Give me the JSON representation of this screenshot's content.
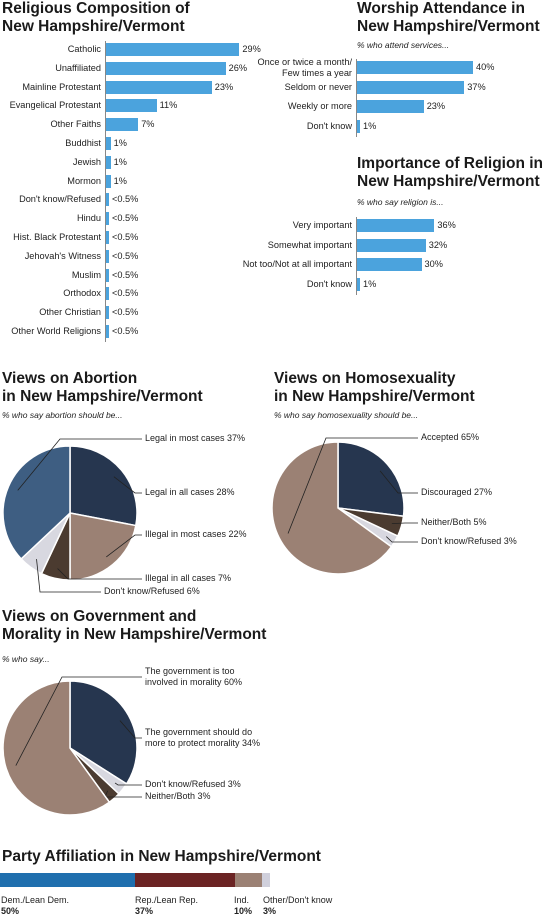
{
  "colors": {
    "bar": "#4ba3dd",
    "dark_navy": "#26364f",
    "steel_blue": "#3e5e82",
    "tan": "#9b8174",
    "dark_brown": "#4b3b30",
    "light_gray": "#d8d8e0",
    "dem_blue": "#1f6fae",
    "rep_red": "#6b2424",
    "ind_tan": "#9b8174",
    "other_gray": "#d0d0dc"
  },
  "religious": {
    "title_line1": "Religious Composition of",
    "title_line2": "New Hampshire/Vermont",
    "chart_data": {
      "type": "bar",
      "categories": [
        "Catholic",
        "Unaffiliated",
        "Mainline Protestant",
        "Evangelical Protestant",
        "Other Faiths",
        "Buddhist",
        "Jewish",
        "Mormon",
        "Don't know/Refused",
        "Hindu",
        "Hist. Black Protestant",
        "Jehovah's Witness",
        "Muslim",
        "Orthodox",
        "Other Christian",
        "Other World Religions"
      ],
      "values": [
        29,
        26,
        23,
        11,
        7,
        1,
        1,
        1,
        0.5,
        0.5,
        0.5,
        0.5,
        0.5,
        0.5,
        0.5,
        0.5
      ],
      "labels": [
        "29%",
        "26%",
        "23%",
        "11%",
        "7%",
        "1%",
        "1%",
        "1%",
        "<0.5%",
        "<0.5%",
        "<0.5%",
        "<0.5%",
        "<0.5%",
        "<0.5%",
        "<0.5%",
        "<0.5%"
      ]
    }
  },
  "worship": {
    "title_line1": "Worship Attendance in",
    "title_line2": "New Hampshire/Vermont",
    "subtitle": "% who attend services...",
    "chart_data": {
      "type": "bar",
      "categories": [
        "Once or twice a month/\nFew times a year",
        "Seldom or never",
        "Weekly or more",
        "Don't know"
      ],
      "values": [
        40,
        37,
        23,
        1
      ],
      "labels": [
        "40%",
        "37%",
        "23%",
        "1%"
      ]
    }
  },
  "importance": {
    "title_line1": "Importance of Religion in",
    "title_line2": "New Hampshire/Vermont",
    "subtitle": "% who say religion is...",
    "chart_data": {
      "type": "bar",
      "categories": [
        "Very important",
        "Somewhat important",
        "Not too/Not at all important",
        "Don't know"
      ],
      "values": [
        36,
        32,
        30,
        1
      ],
      "labels": [
        "36%",
        "32%",
        "30%",
        "1%"
      ]
    }
  },
  "abortion": {
    "title_line1": "Views on Abortion",
    "title_line2": "in New Hampshire/Vermont",
    "subtitle": "% who say abortion should be...",
    "chart_data": {
      "type": "pie",
      "categories": [
        "Legal in all cases",
        "Illegal in most cases",
        "Illegal in all cases",
        "Don't know/Refused",
        "Legal in most cases"
      ],
      "values": [
        28,
        22,
        7,
        6,
        37
      ],
      "labels": [
        "Legal in all cases 28%",
        "Illegal in most cases 22%",
        "Illegal in all cases 7%",
        "Don't know/Refused 6%",
        "Legal in most cases 37%"
      ]
    }
  },
  "homosexuality": {
    "title_line1": "Views on Homosexuality",
    "title_line2": "in New Hampshire/Vermont",
    "subtitle": "% who say homosexuality should be...",
    "chart_data": {
      "type": "pie",
      "categories": [
        "Discouraged",
        "Neither/Both",
        "Don't know/Refused",
        "Accepted"
      ],
      "values": [
        27,
        5,
        3,
        65
      ],
      "labels": [
        "Discouraged 27%",
        "Neither/Both 5%",
        "Don't know/Refused 3%",
        "Accepted 65%"
      ]
    }
  },
  "government": {
    "title_line1": "Views on Government and",
    "title_line2": "Morality in New Hampshire/Vermont",
    "subtitle": "% who say...",
    "chart_data": {
      "type": "pie",
      "categories": [
        "The government should do more to protect morality",
        "Don't know/Refused",
        "Neither/Both",
        "The government is too involved in morality"
      ],
      "values": [
        34,
        3,
        3,
        60
      ],
      "labels": [
        "The government should do\nmore to protect morality 34%",
        "Don't know/Refused 3%",
        "Neither/Both 3%",
        "The government is too\ninvolved in morality 60%"
      ]
    }
  },
  "party": {
    "title": "Party Affiliation in New Hampshire/Vermont",
    "chart_data": {
      "type": "bar",
      "categories": [
        "Dem./Lean Dem.",
        "Rep./Lean Rep.",
        "Ind.",
        "Other/Don't know"
      ],
      "values": [
        50,
        37,
        10,
        3
      ],
      "labels": [
        "50%",
        "37%",
        "10%",
        "3%"
      ]
    }
  }
}
